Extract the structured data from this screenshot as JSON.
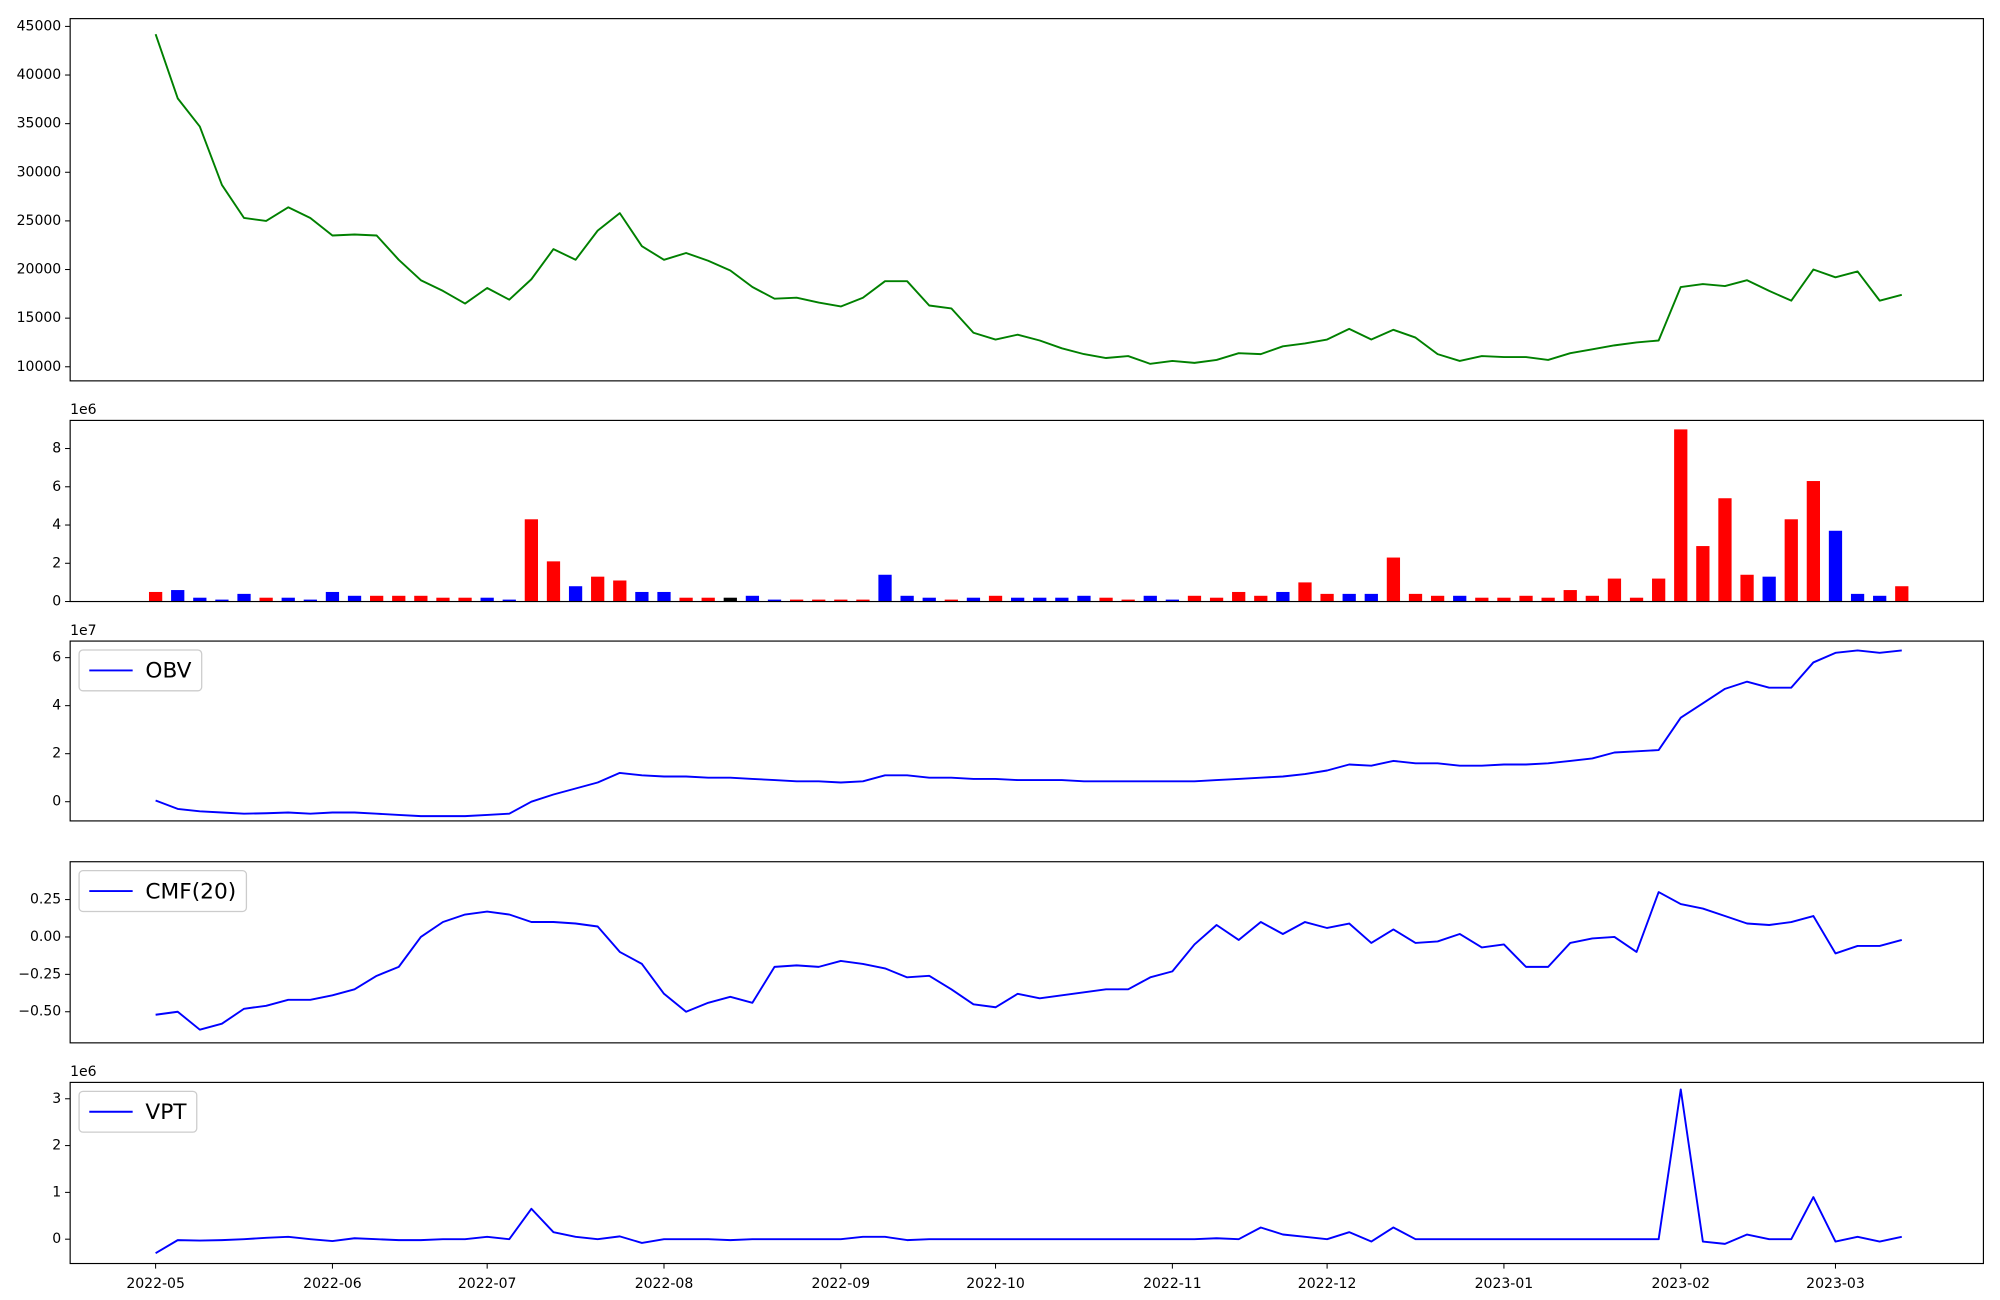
{
  "chart_data": [
    {
      "type": "line",
      "series": [
        {
          "color": "green",
          "values": [
            44200,
            37600,
            34700,
            28700,
            25300,
            25000,
            26400,
            25300,
            23500,
            23600,
            23500,
            21000,
            18900,
            17800,
            16500,
            18100,
            16900,
            19000,
            22100,
            21000,
            24000,
            25800,
            22400,
            21000,
            21700,
            20900,
            19900,
            18200,
            17000,
            17100,
            16600,
            16200,
            17100,
            18800,
            18800,
            16300,
            16000,
            13500,
            12800,
            13300,
            12700,
            11900,
            11300,
            10900,
            11100,
            10300,
            10600,
            10400,
            10700,
            11400,
            11300,
            12100,
            12400,
            12800,
            13900,
            12800,
            13800,
            13000,
            11300,
            10600,
            11100,
            11000,
            11000,
            10700,
            11400,
            11800,
            12200,
            12500,
            12700,
            18200,
            18500,
            18300,
            18900,
            17800,
            16800,
            20000,
            19200,
            19800,
            16800,
            17400
          ]
        }
      ],
      "ylim": [
        8550,
        45800
      ],
      "yticks": [
        10000,
        15000,
        20000,
        25000,
        30000,
        35000,
        40000,
        45000
      ]
    },
    {
      "type": "bar",
      "scale_label": "1e6",
      "values": [
        0.5,
        0.6,
        0.2,
        0.1,
        0.4,
        0.2,
        0.2,
        0.1,
        0.5,
        0.3,
        0.3,
        0.3,
        0.3,
        0.2,
        0.2,
        0.2,
        0.1,
        4.3,
        2.1,
        0.8,
        1.3,
        1.1,
        0.5,
        0.5,
        0.2,
        0.2,
        0.2,
        0.3,
        0.1,
        0.1,
        0.1,
        0.1,
        0.1,
        1.4,
        0.3,
        0.2,
        0.1,
        0.2,
        0.3,
        0.2,
        0.2,
        0.2,
        0.3,
        0.2,
        0.1,
        0.3,
        0.1,
        0.3,
        0.2,
        0.5,
        0.3,
        0.5,
        1.0,
        0.4,
        0.4,
        0.4,
        2.3,
        0.4,
        0.3,
        0.3,
        0.2,
        0.2,
        0.3,
        0.2,
        0.6,
        0.3,
        1.2,
        0.2,
        1.2,
        9.0,
        2.9,
        5.4,
        1.4,
        1.3,
        4.3,
        6.3,
        3.7,
        0.4,
        0.3,
        0.8
      ],
      "colors": [
        "red",
        "blue",
        "blue",
        "blue",
        "blue",
        "red",
        "blue",
        "blue",
        "blue",
        "blue",
        "red",
        "red",
        "red",
        "red",
        "red",
        "blue",
        "blue",
        "red",
        "red",
        "blue",
        "red",
        "red",
        "blue",
        "blue",
        "red",
        "red",
        "black",
        "blue",
        "blue",
        "red",
        "red",
        "red",
        "red",
        "blue",
        "blue",
        "blue",
        "red",
        "blue",
        "red",
        "blue",
        "blue",
        "blue",
        "blue",
        "red",
        "red",
        "blue",
        "blue",
        "red",
        "red",
        "red",
        "red",
        "blue",
        "red",
        "red",
        "blue",
        "blue",
        "red",
        "red",
        "red",
        "blue",
        "red",
        "red",
        "red",
        "red",
        "red",
        "red",
        "red",
        "red",
        "red",
        "red",
        "red",
        "red",
        "red",
        "blue",
        "red",
        "red",
        "blue",
        "blue",
        "blue",
        "red"
      ],
      "ylim": [
        0,
        9.47
      ],
      "yticks": [
        0,
        2,
        4,
        6,
        8
      ]
    },
    {
      "type": "line",
      "scale_label": "1e7",
      "legend": "upper left",
      "series": [
        {
          "name": "OBV",
          "color": "blue",
          "values": [
            0.05,
            -0.3,
            -0.4,
            -0.45,
            -0.5,
            -0.48,
            -0.45,
            -0.5,
            -0.45,
            -0.45,
            -0.5,
            -0.55,
            -0.6,
            -0.6,
            -0.6,
            -0.55,
            -0.5,
            0.0,
            0.3,
            0.55,
            0.8,
            1.2,
            1.1,
            1.05,
            1.05,
            1.0,
            1.0,
            0.95,
            0.9,
            0.85,
            0.85,
            0.8,
            0.85,
            1.1,
            1.1,
            1.0,
            1.0,
            0.95,
            0.95,
            0.9,
            0.9,
            0.9,
            0.85,
            0.85,
            0.85,
            0.85,
            0.85,
            0.85,
            0.9,
            0.95,
            1.0,
            1.05,
            1.15,
            1.3,
            1.55,
            1.5,
            1.7,
            1.6,
            1.6,
            1.5,
            1.5,
            1.55,
            1.55,
            1.6,
            1.7,
            1.8,
            2.05,
            2.1,
            2.15,
            3.5,
            4.1,
            4.7,
            5.0,
            4.75,
            4.75,
            5.8,
            6.2,
            6.3,
            6.2,
            6.3
          ]
        }
      ],
      "ylim": [
        -0.8,
        6.69
      ],
      "yticks": [
        0,
        2,
        4,
        6
      ]
    },
    {
      "type": "line",
      "legend": "upper left",
      "series": [
        {
          "name": "CMF(20)",
          "color": "blue",
          "values": [
            -0.52,
            -0.5,
            -0.62,
            -0.58,
            -0.48,
            -0.46,
            -0.42,
            -0.42,
            -0.39,
            -0.35,
            -0.26,
            -0.2,
            0.0,
            0.1,
            0.15,
            0.17,
            0.15,
            0.1,
            0.1,
            0.09,
            0.07,
            -0.1,
            -0.18,
            -0.38,
            -0.5,
            -0.44,
            -0.4,
            -0.44,
            -0.2,
            -0.19,
            -0.2,
            -0.16,
            -0.18,
            -0.21,
            -0.27,
            -0.26,
            -0.35,
            -0.45,
            -0.47,
            -0.38,
            -0.41,
            -0.39,
            -0.37,
            -0.35,
            -0.35,
            -0.27,
            -0.23,
            -0.05,
            0.08,
            -0.02,
            0.1,
            0.02,
            0.1,
            0.06,
            0.09,
            -0.04,
            0.05,
            -0.04,
            -0.03,
            0.02,
            -0.07,
            -0.05,
            -0.2,
            -0.2,
            -0.04,
            -0.01,
            0.0,
            -0.1,
            0.3,
            0.22,
            0.19,
            0.14,
            0.09,
            0.08,
            0.1,
            0.14,
            -0.11,
            -0.06,
            -0.06,
            -0.02
          ]
        }
      ],
      "ylim": [
        -0.708,
        0.503
      ],
      "yticks": [
        {
          "value": -0.5,
          "label": "−0.50"
        },
        {
          "value": -0.25,
          "label": "−0.25"
        },
        {
          "value": 0,
          "label": "0.00"
        },
        0.25
      ]
    },
    {
      "type": "line",
      "scale_label": "1e6",
      "legend": "upper left",
      "series": [
        {
          "name": "VPT",
          "color": "blue",
          "values": [
            -0.3,
            -0.02,
            -0.03,
            -0.02,
            0.0,
            0.03,
            0.05,
            0.0,
            -0.04,
            0.02,
            0.0,
            -0.02,
            -0.02,
            0.0,
            0.0,
            0.05,
            0.0,
            0.65,
            0.15,
            0.05,
            0.0,
            0.06,
            -0.08,
            0.0,
            0.0,
            0.0,
            -0.02,
            0.0,
            0.0,
            0.0,
            0.0,
            0.0,
            0.05,
            0.05,
            -0.02,
            0.0,
            0.0,
            0.0,
            0.0,
            0.0,
            0.0,
            0.0,
            0.0,
            0.0,
            0.0,
            0.0,
            0.0,
            0.0,
            0.02,
            0.0,
            0.25,
            0.1,
            0.05,
            0.0,
            0.15,
            -0.05,
            0.25,
            0.0,
            0.0,
            0.0,
            0.0,
            0.0,
            0.0,
            0.0,
            0.0,
            0.0,
            0.0,
            0.0,
            0.0,
            3.2,
            -0.05,
            -0.1,
            0.1,
            0.0,
            0.0,
            0.9,
            -0.05,
            0.05,
            -0.05,
            0.05
          ]
        }
      ],
      "ylim": [
        -0.52,
        3.35
      ],
      "yticks": [
        0,
        1,
        2,
        3
      ],
      "categories": [
        "2022-05",
        null,
        null,
        null,
        null,
        null,
        null,
        null,
        "2022-06",
        null,
        null,
        null,
        null,
        null,
        null,
        "2022-07",
        null,
        null,
        null,
        null,
        null,
        null,
        null,
        "2022-08",
        null,
        null,
        null,
        null,
        null,
        null,
        null,
        "2022-09",
        null,
        null,
        null,
        null,
        null,
        null,
        "2022-10",
        null,
        null,
        null,
        null,
        null,
        null,
        null,
        "2022-11",
        null,
        null,
        null,
        null,
        null,
        null,
        "2022-12",
        null,
        null,
        null,
        null,
        null,
        null,
        null,
        "2023-01",
        null,
        null,
        null,
        null,
        null,
        null,
        null,
        "2023-02",
        null,
        null,
        null,
        null,
        null,
        null,
        "2023-03",
        null,
        null,
        null
      ]
    }
  ]
}
